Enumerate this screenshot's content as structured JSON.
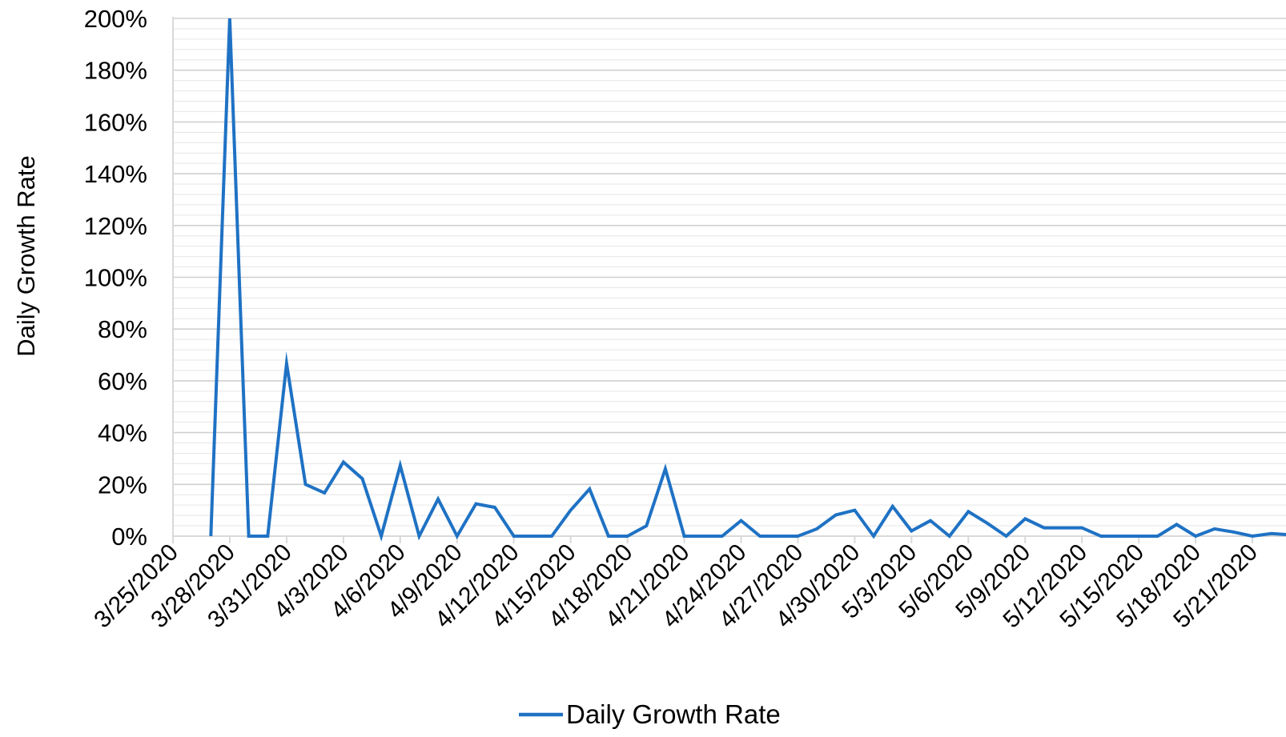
{
  "chart_data": {
    "type": "line",
    "ylabel": "Daily Growth Rate",
    "xlabel": "",
    "ylim": [
      0,
      2
    ],
    "y_ticks": [
      0,
      0.2,
      0.4,
      0.6,
      0.8,
      1.0,
      1.2,
      1.4,
      1.6,
      1.8,
      2.0
    ],
    "y_tick_labels": [
      "0%",
      "20%",
      "40%",
      "60%",
      "80%",
      "100%",
      "120%",
      "140%",
      "160%",
      "180%",
      "200%"
    ],
    "y_minor_step": 0.04,
    "xlim": [
      "3/25/2020",
      "5/24/2020"
    ],
    "x_tick_labels": [
      "3/25/2020",
      "3/28/2020",
      "3/31/2020",
      "4/3/2020",
      "4/6/2020",
      "4/9/2020",
      "4/12/2020",
      "4/15/2020",
      "4/18/2020",
      "4/21/2020",
      "4/24/2020",
      "4/27/2020",
      "4/30/2020",
      "5/3/2020",
      "5/6/2020",
      "5/9/2020",
      "5/12/2020",
      "5/15/2020",
      "5/18/2020",
      "5/21/2020"
    ],
    "grid": true,
    "legend_position": "bottom",
    "series": [
      {
        "name": "Daily Growth Rate",
        "color": "#1f72c4",
        "x": [
          "3/27/2020",
          "3/28/2020",
          "3/29/2020",
          "3/30/2020",
          "3/31/2020",
          "4/1/2020",
          "4/2/2020",
          "4/3/2020",
          "4/4/2020",
          "4/5/2020",
          "4/6/2020",
          "4/7/2020",
          "4/8/2020",
          "4/9/2020",
          "4/10/2020",
          "4/11/2020",
          "4/12/2020",
          "4/13/2020",
          "4/14/2020",
          "4/15/2020",
          "4/16/2020",
          "4/17/2020",
          "4/18/2020",
          "4/19/2020",
          "4/20/2020",
          "4/21/2020",
          "4/22/2020",
          "4/23/2020",
          "4/24/2020",
          "4/25/2020",
          "4/26/2020",
          "4/27/2020",
          "4/28/2020",
          "4/29/2020",
          "4/30/2020",
          "5/1/2020",
          "5/2/2020",
          "5/3/2020",
          "5/4/2020",
          "5/5/2020",
          "5/6/2020",
          "5/7/2020",
          "5/8/2020",
          "5/9/2020",
          "5/10/2020",
          "5/11/2020",
          "5/12/2020",
          "5/13/2020",
          "5/14/2020",
          "5/15/2020",
          "5/16/2020",
          "5/17/2020",
          "5/18/2020",
          "5/19/2020",
          "5/20/2020",
          "5/21/2020",
          "5/22/2020",
          "5/23/2020"
        ],
        "values": [
          0,
          2.0,
          0,
          0,
          0.667,
          0.2,
          0.167,
          0.286,
          0.222,
          0,
          0.273,
          0,
          0.143,
          0,
          0.125,
          0.111,
          0,
          0,
          0,
          0.1,
          0.182,
          0,
          0,
          0.04,
          0.26,
          0,
          0,
          0,
          0.06,
          0,
          0,
          0,
          0.028,
          0.082,
          0.1,
          0,
          0.115,
          0.02,
          0.06,
          0,
          0.095,
          0.05,
          0,
          0.067,
          0.032,
          0.032,
          0.032,
          0,
          0,
          0,
          0,
          0.045,
          0,
          0.028,
          0.016,
          0,
          0.01,
          0.005
        ]
      }
    ]
  }
}
